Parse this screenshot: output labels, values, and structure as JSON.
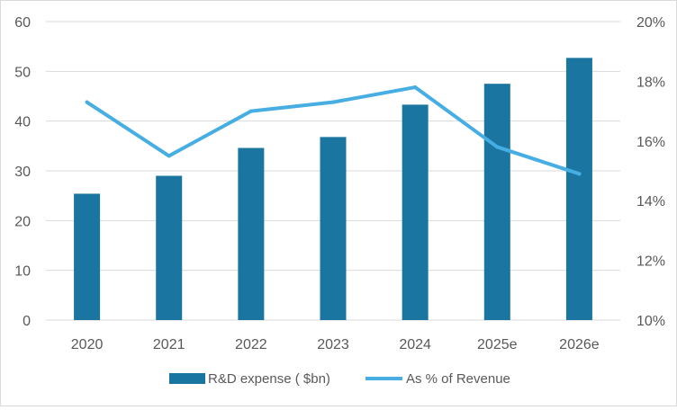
{
  "chart_data": {
    "type": "bar+line",
    "categories": [
      "2020",
      "2021",
      "2022",
      "2023",
      "2024",
      "2025e",
      "2026e"
    ],
    "series": [
      {
        "name": "R&D expense ( $bn)",
        "type": "bar",
        "axis": "left",
        "values": [
          25.4,
          29.0,
          34.6,
          36.8,
          43.3,
          47.5,
          52.7
        ]
      },
      {
        "name": "As % of Revenue",
        "type": "line",
        "axis": "right",
        "values": [
          17.3,
          15.5,
          17.0,
          17.3,
          17.8,
          15.8,
          14.9
        ]
      }
    ],
    "y_left": {
      "min": 0,
      "max": 60,
      "ticks": [
        0,
        10,
        20,
        30,
        40,
        50,
        60
      ]
    },
    "y_right": {
      "min": 10,
      "max": 20,
      "ticks": [
        "10%",
        "12%",
        "14%",
        "16%",
        "18%",
        "20%"
      ]
    },
    "grid": "horizontal",
    "legend_position": "bottom",
    "colors": {
      "bar": "#1a75a1",
      "line": "#47aee3",
      "grid": "#d9d9d9",
      "text": "#595959"
    }
  }
}
